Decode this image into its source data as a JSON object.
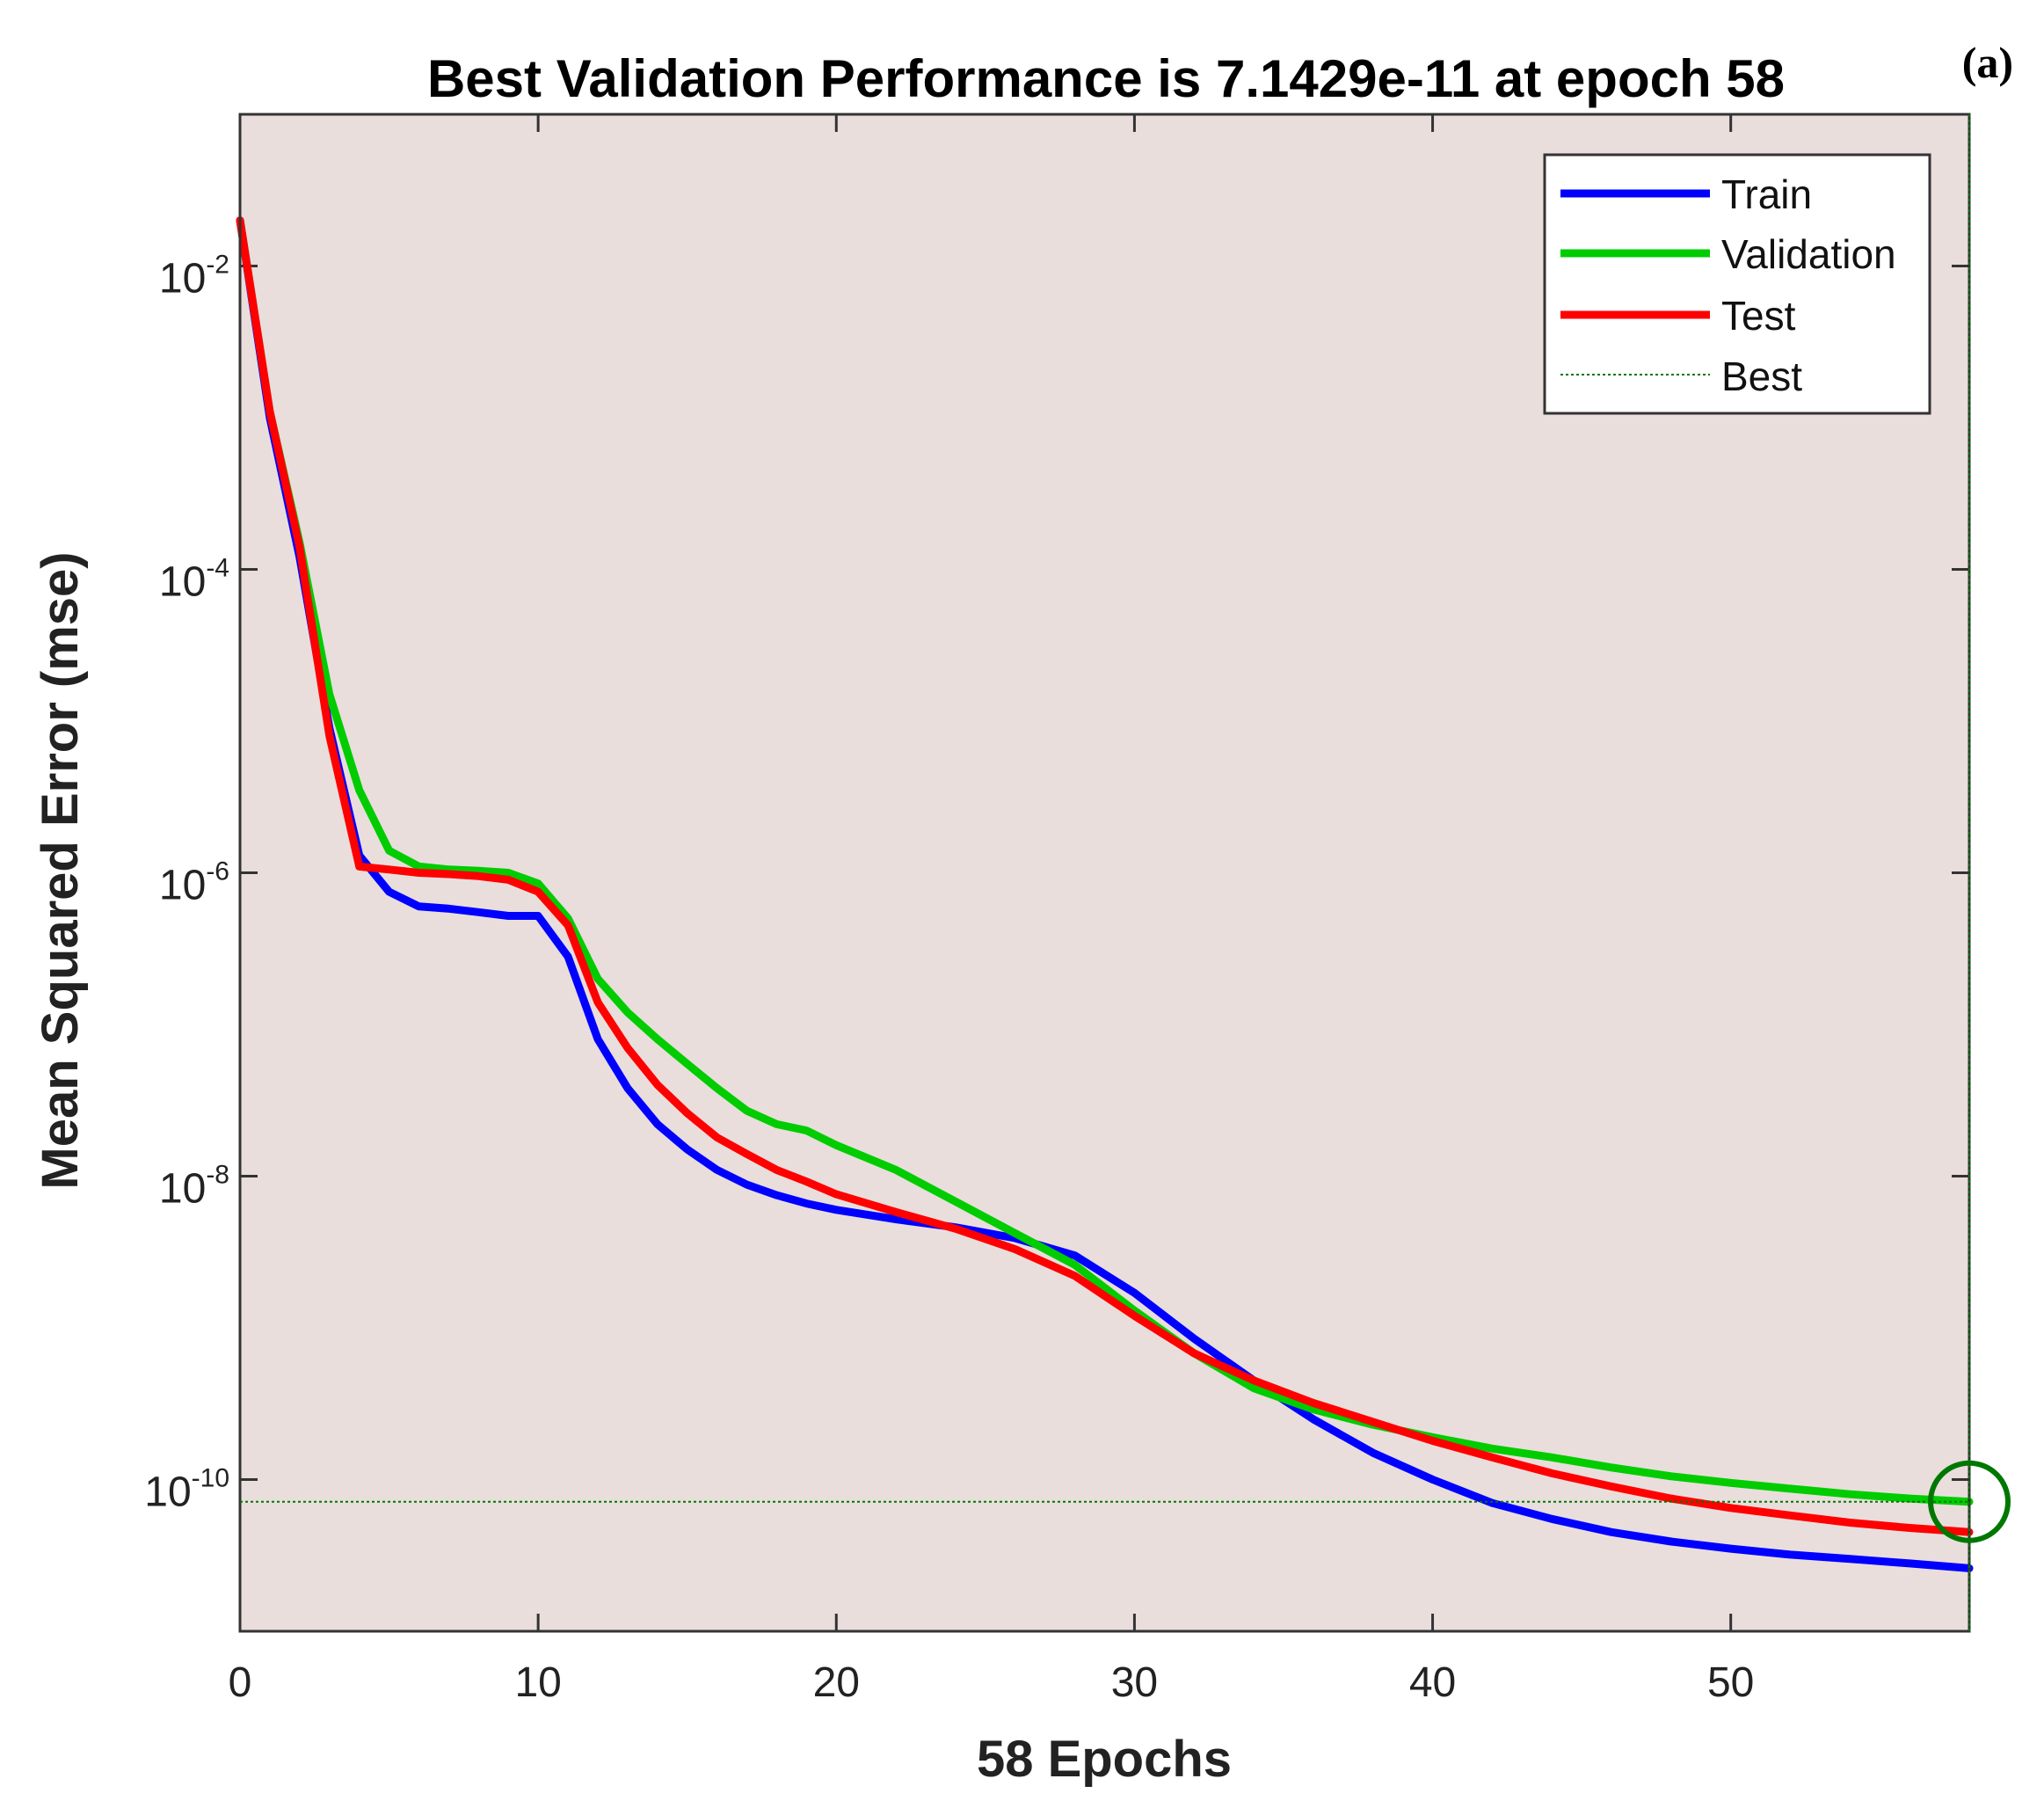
{
  "panel_label": "(a)",
  "chart_data": {
    "type": "line",
    "title": "Best Validation Performance is 7.1429e-11 at epoch 58",
    "xlabel": "58 Epochs",
    "ylabel": "Mean Squared Error  (mse)",
    "xlim": [
      0,
      58
    ],
    "ylim": [
      1e-11,
      0.1
    ],
    "yscale": "log",
    "xticks": [
      0,
      10,
      20,
      30,
      40,
      50
    ],
    "xtick_labels": [
      "0",
      "10",
      "20",
      "30",
      "40",
      "50"
    ],
    "yticks": [
      {
        "value": 0.01,
        "base": "10",
        "exp": "-2"
      },
      {
        "value": 0.0001,
        "base": "10",
        "exp": "-4"
      },
      {
        "value": 1e-06,
        "base": "10",
        "exp": "-6"
      },
      {
        "value": 1e-08,
        "base": "10",
        "exp": "-8"
      },
      {
        "value": 1e-10,
        "base": "10",
        "exp": "-10"
      }
    ],
    "legend_position": "top-right",
    "background": "#e9dedc",
    "series": [
      {
        "name": "Train",
        "color": "#0000ff",
        "x": [
          0,
          1,
          2,
          3,
          4,
          5,
          6,
          7,
          8,
          9,
          10,
          11,
          12,
          13,
          14,
          15,
          16,
          17,
          18,
          19,
          20,
          22,
          24,
          26,
          28,
          30,
          32,
          34,
          36,
          38,
          40,
          42,
          44,
          46,
          48,
          50,
          52,
          54,
          56,
          58
        ],
        "y": [
          0.02,
          0.001,
          0.00012,
          9e-06,
          1.3e-06,
          7.5e-07,
          6e-07,
          5.8e-07,
          5.5e-07,
          5.2e-07,
          5.2e-07,
          2.8e-07,
          8e-08,
          3.8e-08,
          2.2e-08,
          1.5e-08,
          1.1e-08,
          8.8e-09,
          7.5e-09,
          6.6e-09,
          6e-09,
          5.2e-09,
          4.6e-09,
          3.9e-09,
          3e-09,
          1.7e-09,
          8.5e-10,
          4.5e-10,
          2.5e-10,
          1.5e-10,
          1e-10,
          7e-11,
          5.5e-11,
          4.5e-11,
          3.9e-11,
          3.5e-11,
          3.2e-11,
          3e-11,
          2.8e-11,
          2.6e-11
        ]
      },
      {
        "name": "Validation",
        "color": "#00cc00",
        "x": [
          0,
          1,
          2,
          3,
          4,
          5,
          6,
          7,
          8,
          9,
          10,
          11,
          12,
          13,
          14,
          15,
          16,
          17,
          18,
          19,
          20,
          22,
          24,
          26,
          28,
          30,
          32,
          34,
          36,
          38,
          40,
          42,
          44,
          46,
          48,
          50,
          52,
          54,
          56,
          58
        ],
        "y": [
          0.02,
          0.0011,
          0.00015,
          1.5e-05,
          3.5e-06,
          1.4e-06,
          1.1e-06,
          1.05e-06,
          1.03e-06,
          1e-06,
          8.5e-07,
          5e-07,
          2e-07,
          1.2e-07,
          8e-08,
          5.5e-08,
          3.8e-08,
          2.7e-08,
          2.2e-08,
          2e-08,
          1.6e-08,
          1.1e-08,
          6.8e-09,
          4.2e-09,
          2.6e-09,
          1.3e-09,
          6.8e-10,
          4e-10,
          2.9e-10,
          2.3e-10,
          1.9e-10,
          1.6e-10,
          1.4e-10,
          1.2e-10,
          1.05e-10,
          9.5e-11,
          8.7e-11,
          8e-11,
          7.5e-11,
          7.1429e-11
        ]
      },
      {
        "name": "Test",
        "color": "#ff0000",
        "x": [
          0,
          1,
          2,
          3,
          4,
          5,
          6,
          7,
          8,
          9,
          10,
          11,
          12,
          13,
          14,
          15,
          16,
          17,
          18,
          19,
          20,
          22,
          24,
          26,
          28,
          30,
          32,
          34,
          36,
          38,
          40,
          42,
          44,
          46,
          48,
          50,
          52,
          54,
          56,
          58
        ],
        "y": [
          0.02,
          0.0011,
          0.00014,
          8e-06,
          1.1e-06,
          1.05e-06,
          1e-06,
          9.8e-07,
          9.5e-07,
          9e-07,
          7.5e-07,
          4.5e-07,
          1.4e-07,
          7e-08,
          4e-08,
          2.6e-08,
          1.8e-08,
          1.4e-08,
          1.1e-08,
          9.2e-09,
          7.6e-09,
          5.8e-09,
          4.5e-09,
          3.3e-09,
          2.2e-09,
          1.2e-09,
          6.8e-10,
          4.5e-10,
          3.2e-10,
          2.4e-10,
          1.8e-10,
          1.4e-10,
          1.1e-10,
          9e-11,
          7.5e-11,
          6.5e-11,
          5.8e-11,
          5.2e-11,
          4.8e-11,
          4.5e-11
        ]
      }
    ],
    "best": {
      "name": "Best",
      "epoch": 58,
      "value": 7.1429e-11,
      "color": "#007700"
    }
  }
}
